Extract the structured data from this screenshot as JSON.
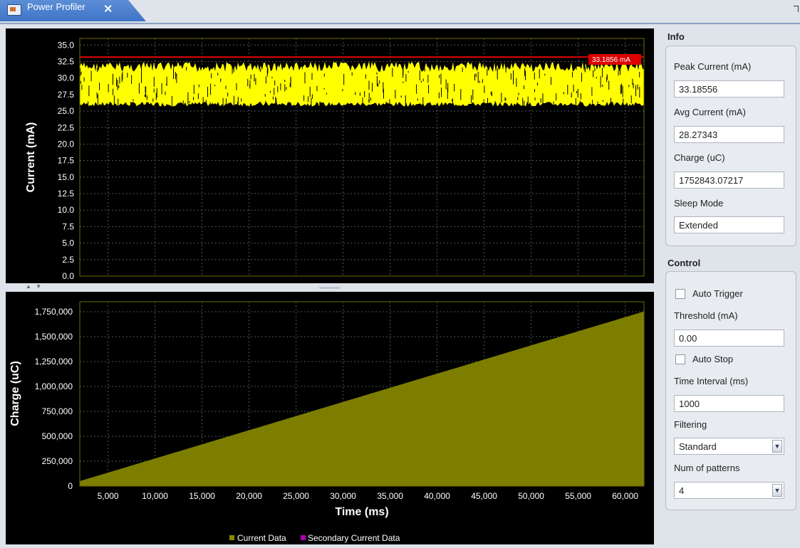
{
  "tab": {
    "title": "Power Profiler",
    "close_glyph": "⨯"
  },
  "icons": {
    "tab_icon": "window-icon",
    "close": "close-icon",
    "dropdown": "chevron-down-icon",
    "restore": "restore-icon"
  },
  "colors": {
    "trace": "#ffff00",
    "peak_line": "#dd0000",
    "charge_fill": "#7d7d00",
    "legend_current": "#8a8a00",
    "legend_secondary": "#b000b0"
  },
  "current_chart": {
    "ylabel": "Current (mA)",
    "yticks": [
      "35.0",
      "32.5",
      "30.0",
      "27.5",
      "25.0",
      "22.5",
      "20.0",
      "17.5",
      "15.0",
      "12.5",
      "10.0",
      "7.5",
      "5.0",
      "2.5",
      "0.0"
    ],
    "peak_label": "33.1856 mA"
  },
  "charge_chart": {
    "ylabel": "Charge (uC)",
    "xlabel": "Time (ms)",
    "yticks": [
      "1,750,000",
      "1,500,000",
      "1,250,000",
      "1,000,000",
      "750,000",
      "500,000",
      "250,000",
      "0"
    ],
    "xticks": [
      "5,000",
      "10,000",
      "15,000",
      "20,000",
      "25,000",
      "30,000",
      "35,000",
      "40,000",
      "45,000",
      "50,000",
      "55,000",
      "60,000"
    ],
    "legend": [
      "Current Data",
      "Secondary Current Data"
    ]
  },
  "chart_data": [
    {
      "type": "area",
      "series": [
        {
          "name": "Current Data",
          "y_min": 25.7,
          "y_max": 32.5
        }
      ],
      "reference_line": {
        "value": 33.18556,
        "label": "33.1856 mA"
      },
      "xlim": [
        2000,
        62000
      ],
      "ylim": [
        0,
        36
      ],
      "ylabel": "Current (mA)",
      "grid": true
    },
    {
      "type": "area",
      "series": [
        {
          "name": "Current Data",
          "x": [
            2000,
            62000
          ],
          "y": [
            50000,
            1752843
          ]
        }
      ],
      "xlim": [
        2000,
        62000
      ],
      "ylim": [
        0,
        1850000
      ],
      "xlabel": "Time (ms)",
      "ylabel": "Charge (uC)",
      "legend": "bottom",
      "grid": true
    }
  ],
  "info": {
    "title": "Info",
    "peak_label": "Peak Current (mA)",
    "peak_value": "33.18556",
    "avg_label": "Avg Current (mA)",
    "avg_value": "28.27343",
    "charge_label": "Charge (uC)",
    "charge_value": "1752843.07217",
    "sleep_label": "Sleep Mode",
    "sleep_value": "Extended"
  },
  "control": {
    "title": "Control",
    "auto_trigger": "Auto Trigger",
    "threshold_label": "Threshold (mA)",
    "threshold_value": "0.00",
    "auto_stop": "Auto Stop",
    "interval_label": "Time Interval (ms)",
    "interval_value": "1000",
    "filtering_label": "Filtering",
    "filtering_value": "Standard",
    "patterns_label": "Num of patterns",
    "patterns_value": "4"
  }
}
